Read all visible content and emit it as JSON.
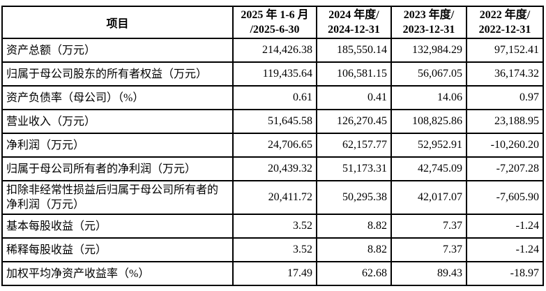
{
  "table": {
    "header": {
      "item_label": "项目",
      "periods": [
        {
          "text": "2025 年 1-6 月\n/2025-6-30"
        },
        {
          "text": "2024 年度/\n2024-12-31"
        },
        {
          "text": "2023 年度/\n2023-12-31"
        },
        {
          "text": "2022 年度/\n2022-12-31"
        }
      ]
    },
    "rows": [
      {
        "label": "资产总额（万元）",
        "values": [
          "214,426.38",
          "185,550.14",
          "132,984.29",
          "97,152.41"
        ]
      },
      {
        "label": "归属于母公司股东的所有者权益（万元）",
        "values": [
          "119,435.64",
          "106,581.15",
          "56,067.05",
          "36,174.32"
        ]
      },
      {
        "label": "资产负债率（母公司）（%）",
        "values": [
          "0.61",
          "0.41",
          "14.06",
          "0.97"
        ]
      },
      {
        "label": "营业收入（万元）",
        "values": [
          "51,645.58",
          "126,270.45",
          "108,825.86",
          "23,188.95"
        ]
      },
      {
        "label": "净利润（万元）",
        "values": [
          "24,706.65",
          "62,157.77",
          "52,952.91",
          "-10,260.20"
        ]
      },
      {
        "label": "归属于母公司所有者的净利润（万元）",
        "values": [
          "20,439.32",
          "51,173.31",
          "42,745.09",
          "-7,207.28"
        ]
      },
      {
        "label": "扣除非经常性损益后归属于母公司所有者的净利润（万元）",
        "values": [
          "20,411.72",
          "50,295.38",
          "42,017.07",
          "-7,605.90"
        ]
      },
      {
        "label": "基本每股收益（元）",
        "values": [
          "3.52",
          "8.82",
          "7.37",
          "-1.24"
        ]
      },
      {
        "label": "稀释每股收益（元）",
        "values": [
          "3.52",
          "8.82",
          "7.37",
          "-1.24"
        ]
      },
      {
        "label": "加权平均净资产收益率（%）",
        "values": [
          "17.49",
          "62.68",
          "89.43",
          "-18.97"
        ]
      }
    ],
    "colors": {
      "border": "#000000",
      "text": "#000000",
      "background": "#ffffff"
    }
  }
}
